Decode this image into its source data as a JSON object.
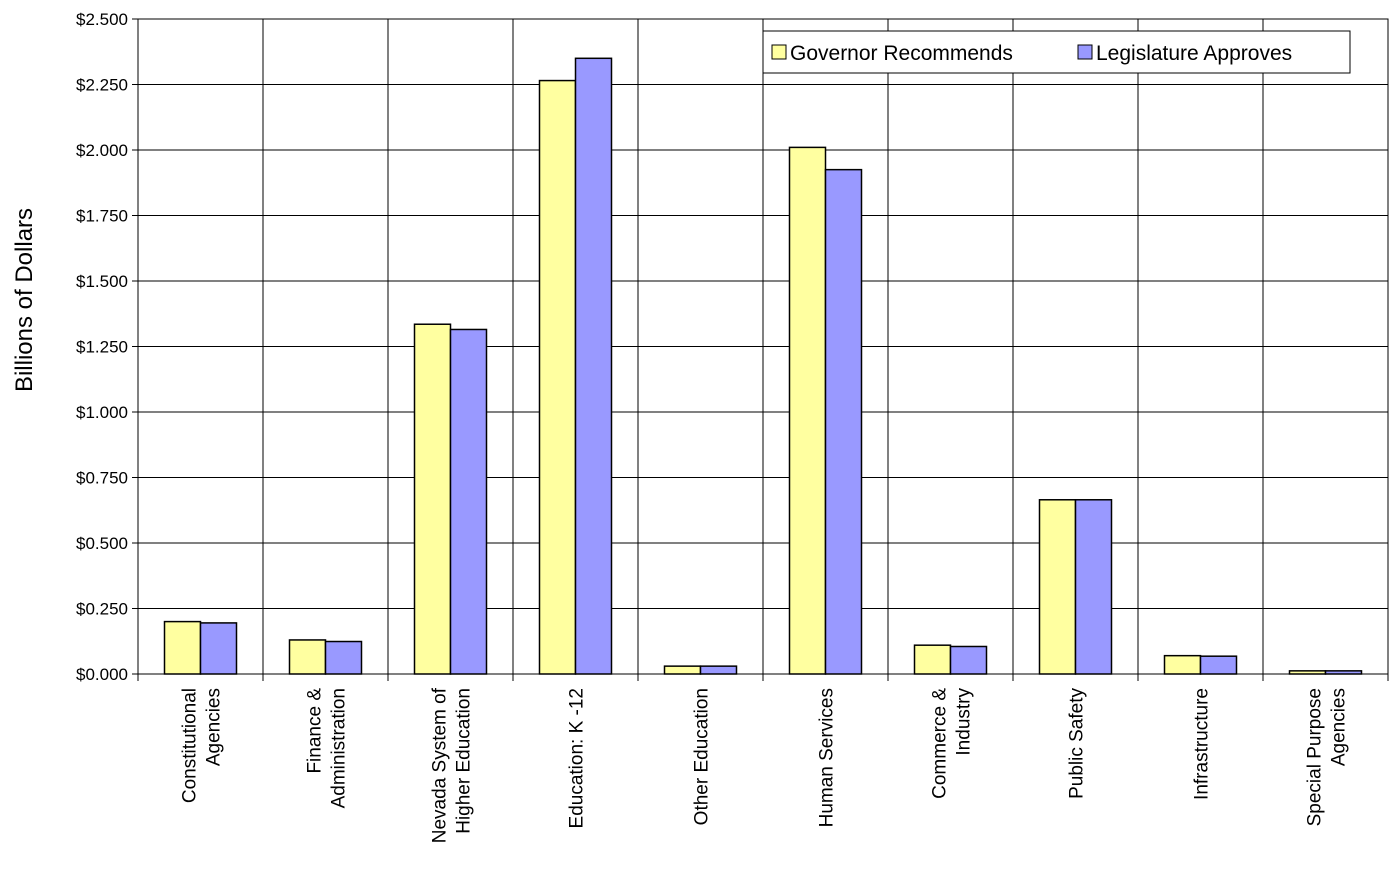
{
  "chart_data": {
    "type": "bar",
    "title": "",
    "xlabel": "",
    "ylabel": "Billions of Dollars",
    "ylim": [
      0,
      2.5
    ],
    "yticks": [
      0,
      0.25,
      0.5,
      0.75,
      1.0,
      1.25,
      1.5,
      1.75,
      2.0,
      2.25,
      2.5
    ],
    "ytick_labels": [
      "$0.000",
      "$0.250",
      "$0.500",
      "$0.750",
      "$1.000",
      "$1.250",
      "$1.500",
      "$1.750",
      "$2.000",
      "$2.250",
      "$2.500"
    ],
    "grid": true,
    "legend_position": "top-right",
    "categories": [
      [
        "Constitutional",
        "Agencies"
      ],
      [
        "Finance &",
        "Administration"
      ],
      [
        "Nevada System of",
        "Higher Education"
      ],
      [
        "Education: K -12"
      ],
      [
        "Other Education"
      ],
      [
        "Human Services"
      ],
      [
        "Commerce &",
        "Industry"
      ],
      [
        "Public Safety"
      ],
      [
        "Infrastructure"
      ],
      [
        "Special Purpose",
        "Agencies"
      ]
    ],
    "series": [
      {
        "name": "Governor Recommends",
        "color": "#FFFFA0",
        "values": [
          0.2,
          0.13,
          1.335,
          2.265,
          0.03,
          2.01,
          0.11,
          0.665,
          0.07,
          0.012
        ]
      },
      {
        "name": "Legislature Approves",
        "color": "#9999FF",
        "values": [
          0.195,
          0.124,
          1.315,
          2.35,
          0.03,
          1.925,
          0.105,
          0.665,
          0.068,
          0.012
        ]
      }
    ]
  }
}
